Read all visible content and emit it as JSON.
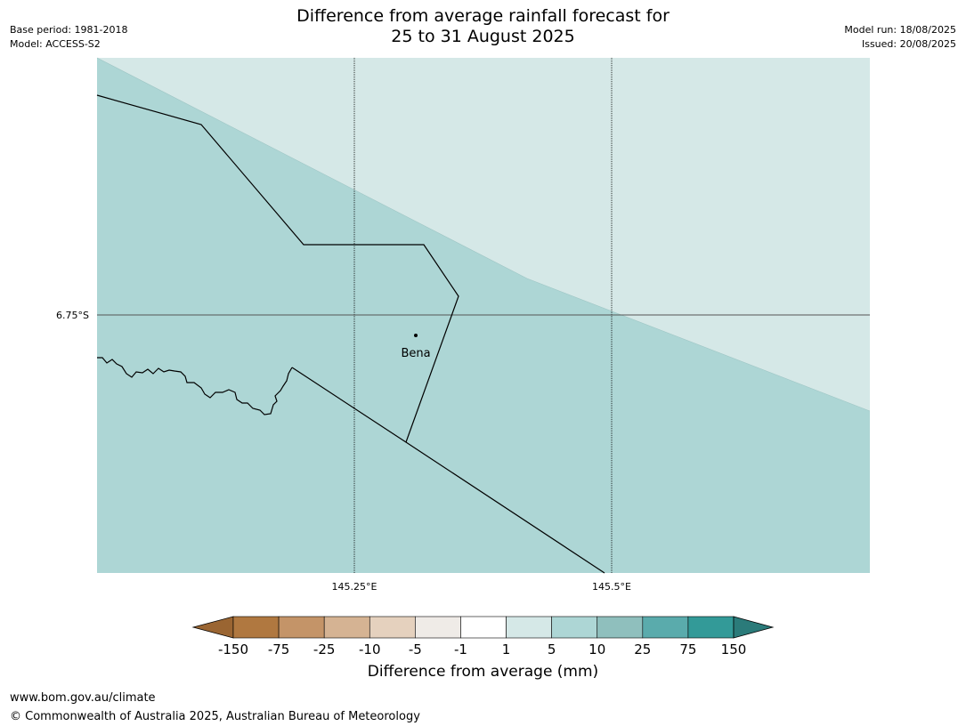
{
  "header": {
    "title_line1": "Difference from average rainfall forecast for",
    "title_line2": "25 to 31 August 2025",
    "base_period": "Base period: 1981-2018",
    "model": "Model: ACCESS-S2",
    "model_run": "Model run: 18/08/2025",
    "issued": "Issued: 20/08/2025"
  },
  "map": {
    "place_label": "Bena",
    "lat_label": "6.75°S",
    "lon_labels": [
      "145.25°E",
      "145.5°E"
    ],
    "fill_colors": {
      "lighter": "#d5e8e7",
      "darker": "#add6d5"
    }
  },
  "legend": {
    "title": "Difference from average (mm)",
    "tick_labels": [
      "-150",
      "-75",
      "-25",
      "-10",
      "-5",
      "-1",
      "1",
      "5",
      "10",
      "25",
      "75",
      "150"
    ],
    "colors": [
      "#9a6532",
      "#b07840",
      "#c49468",
      "#d5b393",
      "#e5d1be",
      "#efebe7",
      "#ffffff",
      "#d5e8e7",
      "#add6d5",
      "#8fbfbd",
      "#5aabac",
      "#339a98",
      "#2b7b7a"
    ]
  },
  "footer": {
    "url": "www.bom.gov.au/climate",
    "copyright": "© Commonwealth of Australia 2025, Australian Bureau of Meteorology"
  }
}
